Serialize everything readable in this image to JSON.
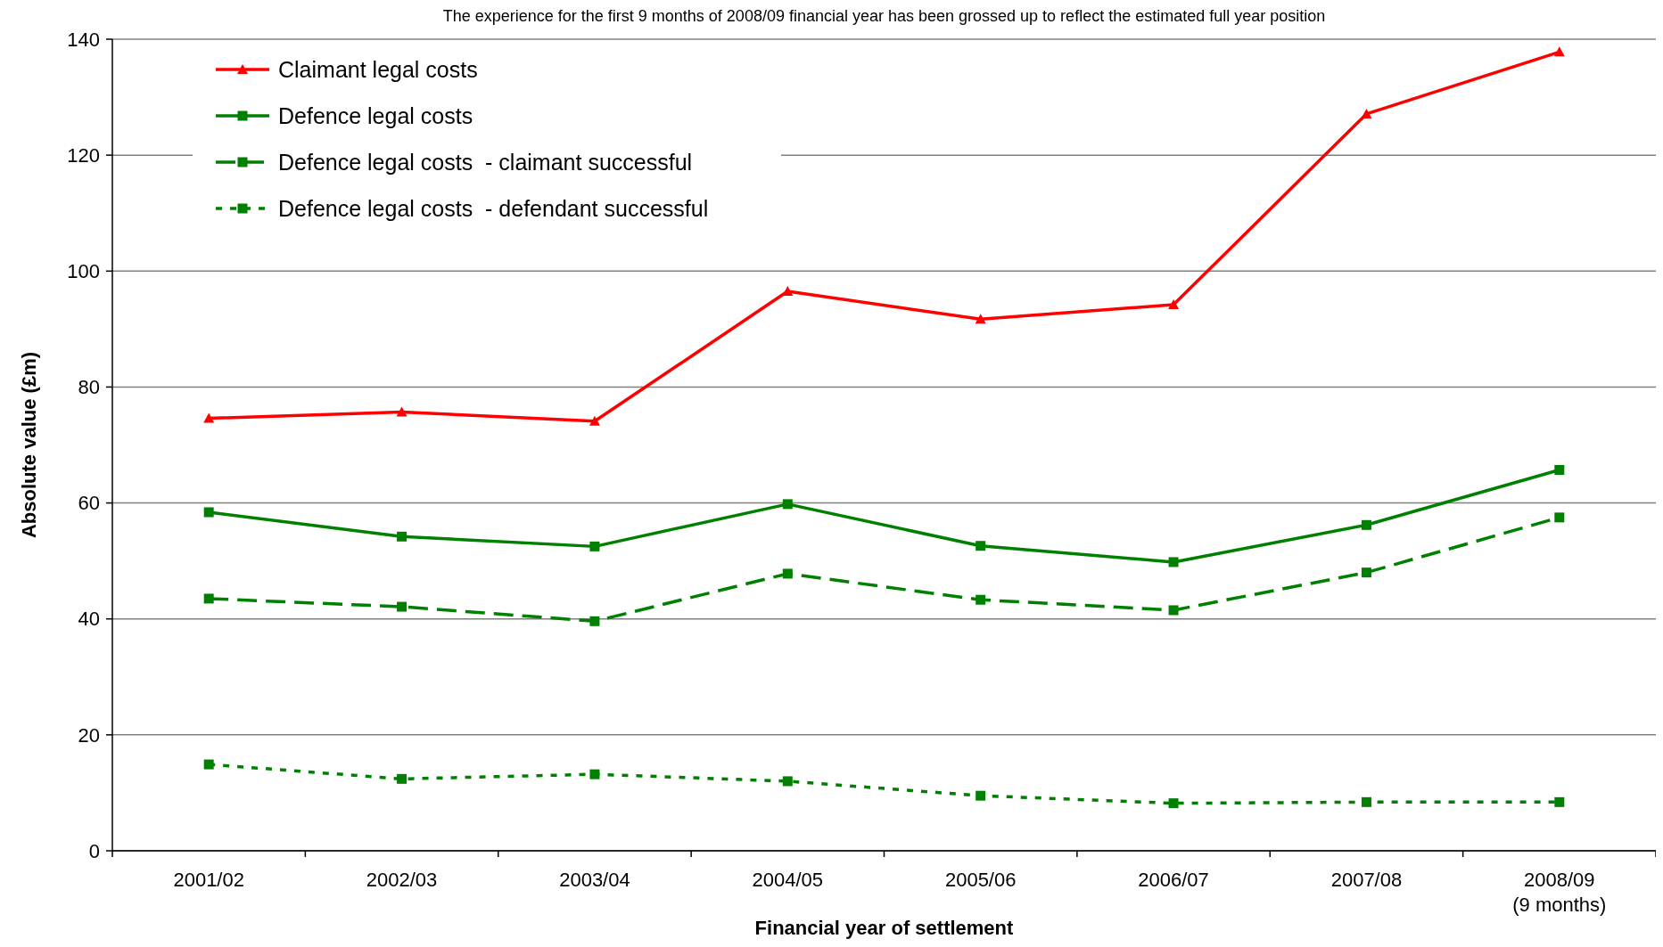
{
  "chart_data": {
    "type": "line",
    "xlabel": "Financial year of settlement",
    "ylabel": "Absolute value (£m)",
    "annotations": [
      "The experience for the first 9 months of 2008/09 financial year has been grossed up to reflect the estimated full year position"
    ],
    "categories": [
      "2001/02",
      "2002/03",
      "2003/04",
      "2004/05",
      "2005/06",
      "2006/07",
      "2007/08",
      "2008/09\n(9 months)"
    ],
    "ylim": [
      0,
      140
    ],
    "yticks": [
      0,
      20,
      40,
      60,
      80,
      100,
      120,
      140
    ],
    "grid": "y",
    "legend": "top left",
    "series": [
      {
        "name": "Claimant legal costs",
        "color": "#ff0000",
        "marker": "triangle",
        "line_style": "solid",
        "values": [
          74.6,
          75.7,
          74.1,
          96.5,
          91.7,
          94.2,
          127.1,
          137.8
        ]
      },
      {
        "name": "Defence legal costs",
        "color": "#008000",
        "marker": "square",
        "line_style": "solid",
        "values": [
          58.4,
          54.2,
          52.5,
          59.8,
          52.6,
          49.8,
          56.2,
          65.7
        ]
      },
      {
        "name": "Defence legal costs  - claimant successful",
        "color": "#008000",
        "marker": "square",
        "line_style": "dashed",
        "values": [
          43.5,
          42.1,
          39.6,
          47.8,
          43.3,
          41.5,
          48.0,
          57.5
        ]
      },
      {
        "name": "Defence legal costs  - defendant successful",
        "color": "#008000",
        "marker": "square",
        "line_style": "dotted",
        "values": [
          14.9,
          12.4,
          13.2,
          12.0,
          9.5,
          8.2,
          8.4,
          8.4
        ]
      }
    ]
  }
}
